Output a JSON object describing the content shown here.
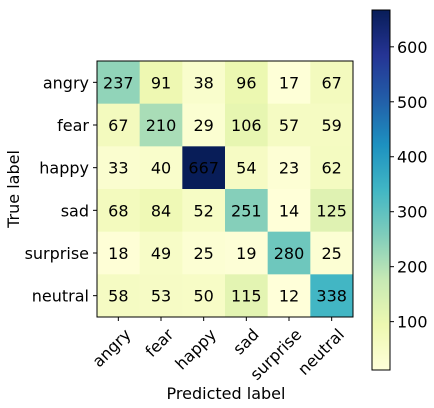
{
  "chart_data": {
    "type": "heatmap",
    "title": "",
    "xlabel": "Predicted label",
    "ylabel": "True label",
    "x_categories": [
      "angry",
      "fear",
      "happy",
      "sad",
      "surprise",
      "neutral"
    ],
    "y_categories": [
      "angry",
      "fear",
      "happy",
      "sad",
      "surprise",
      "neutral"
    ],
    "values": [
      [
        237,
        91,
        38,
        96,
        17,
        67
      ],
      [
        67,
        210,
        29,
        106,
        57,
        59
      ],
      [
        33,
        40,
        667,
        54,
        23,
        62
      ],
      [
        68,
        84,
        52,
        251,
        14,
        125
      ],
      [
        18,
        49,
        25,
        19,
        280,
        25
      ],
      [
        58,
        53,
        50,
        115,
        12,
        338
      ]
    ],
    "colormap": "YlGnBu",
    "colorbar": {
      "min": 12,
      "max": 667,
      "ticks": [
        100,
        200,
        300,
        400,
        500,
        600
      ]
    },
    "x_tick_rotation_deg": 45,
    "grid": false
  }
}
